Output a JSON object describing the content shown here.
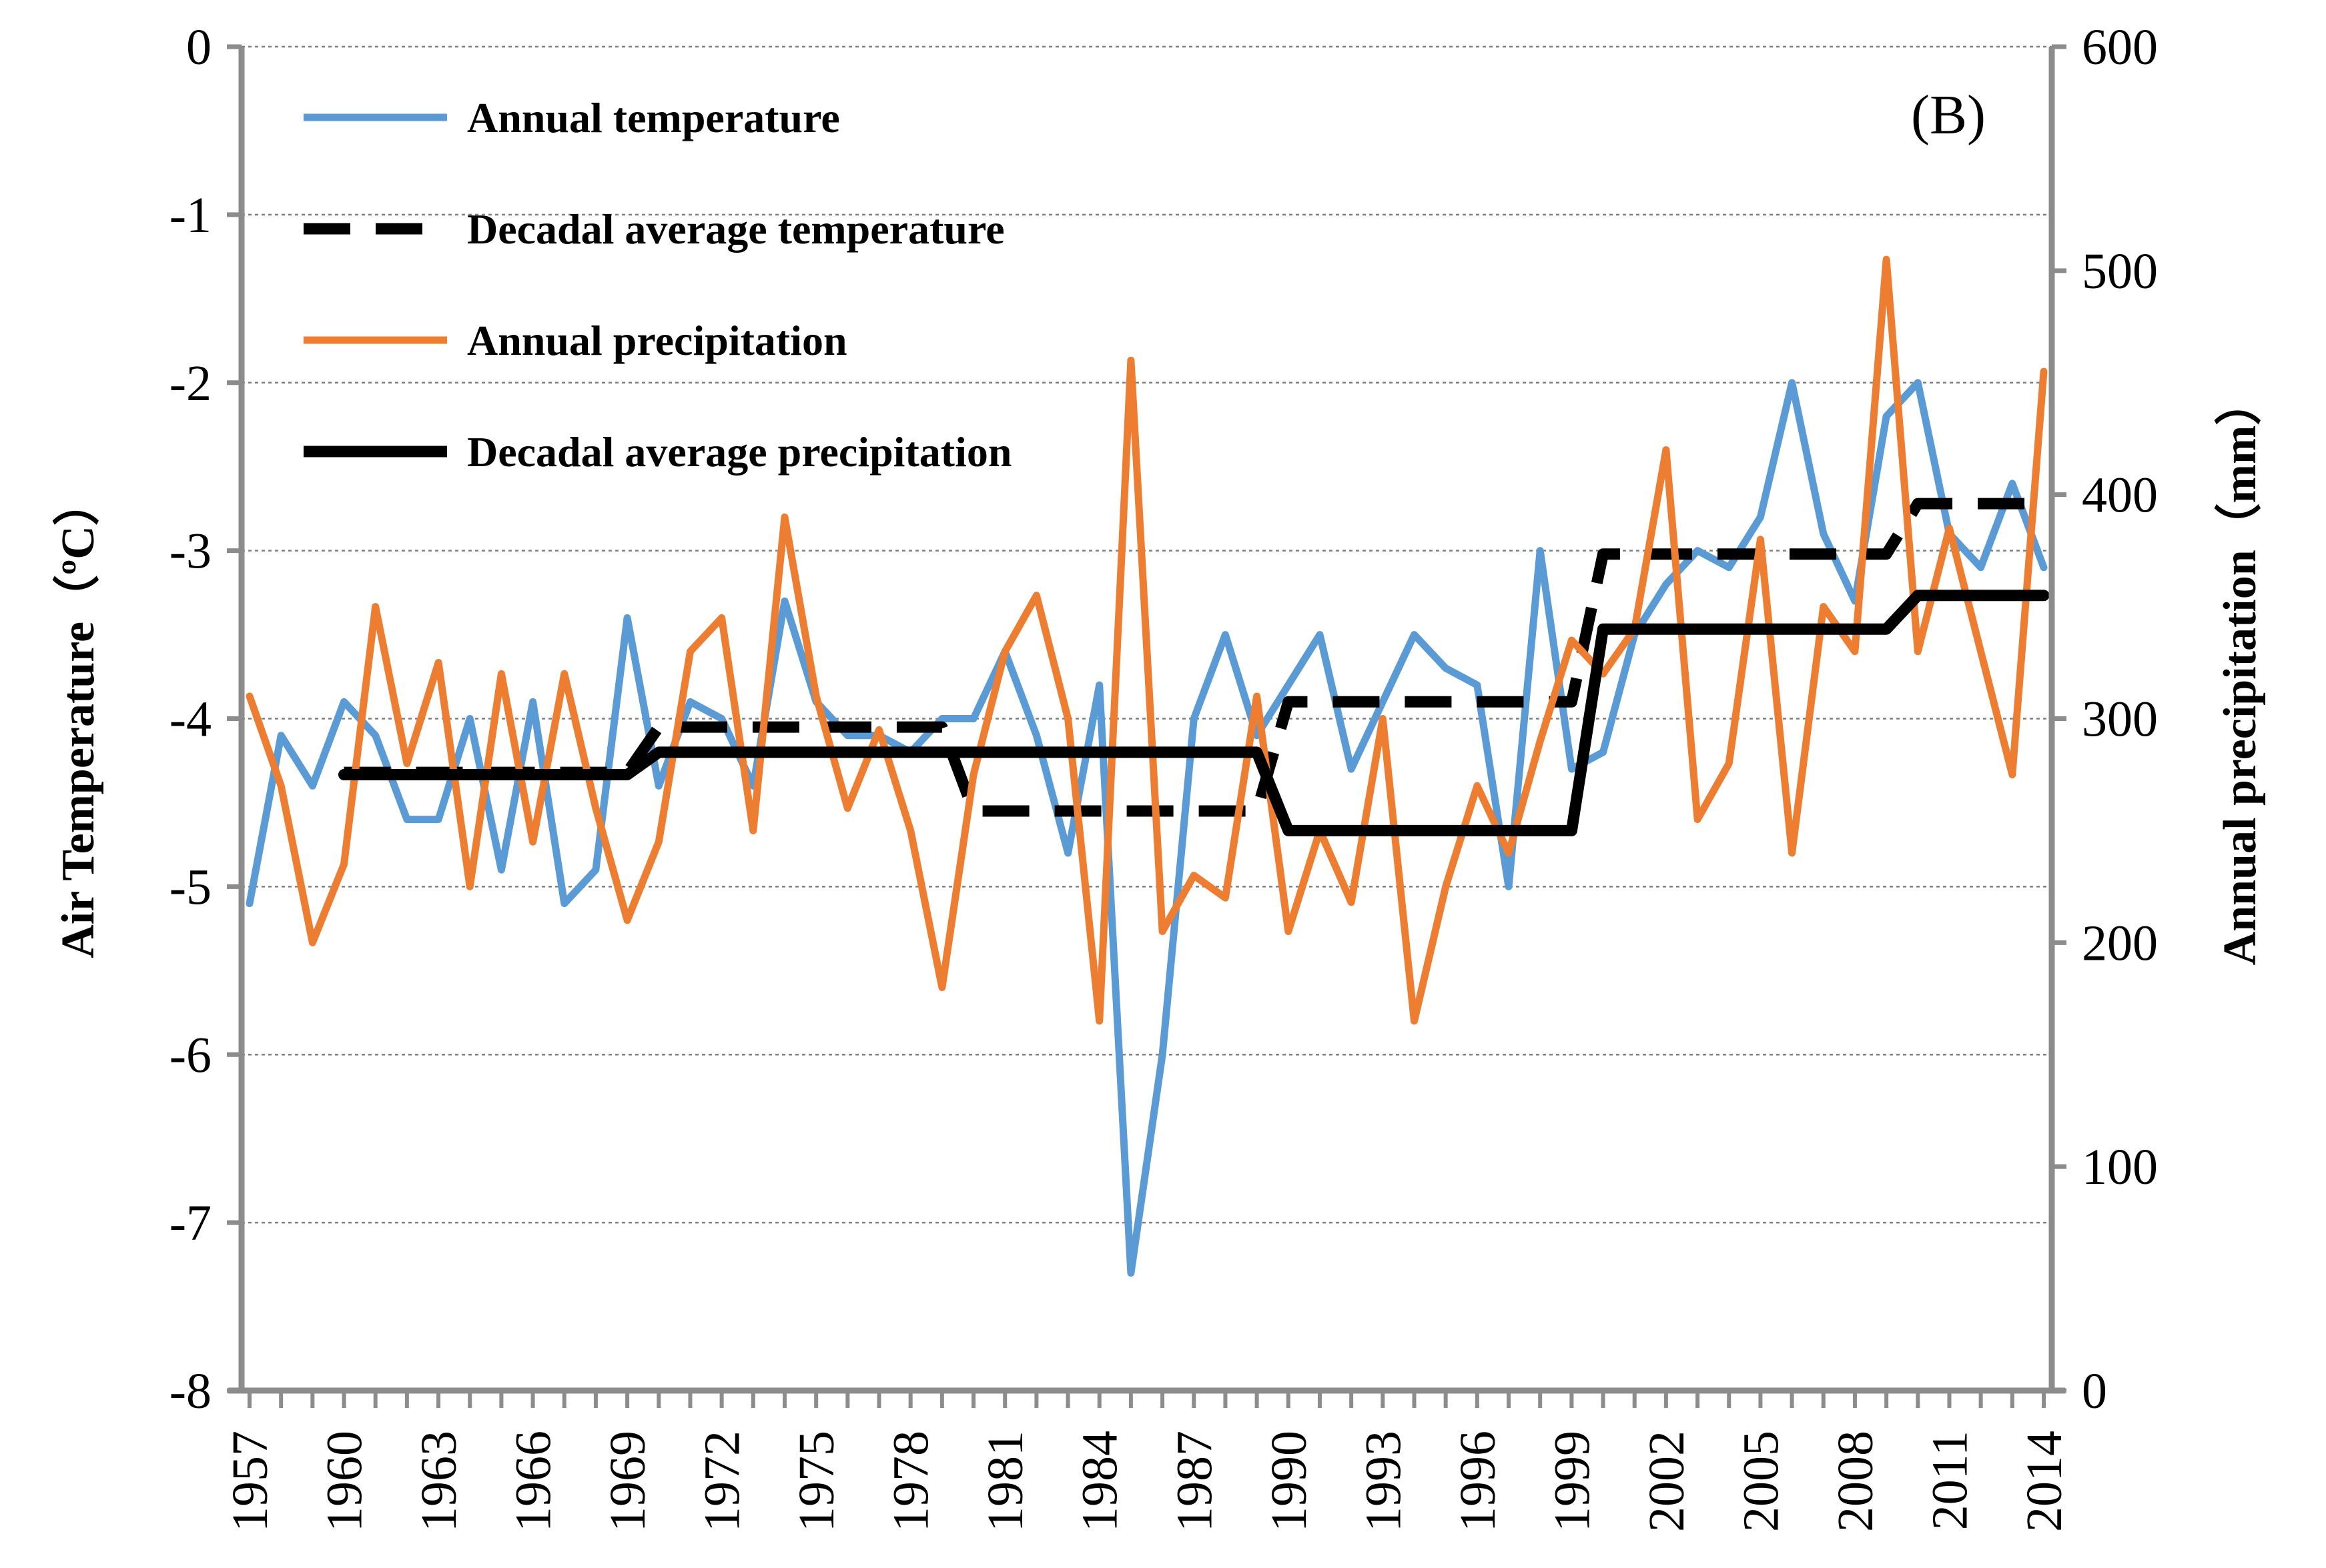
{
  "chart_data": {
    "type": "line",
    "panel_label": "(B)",
    "left_axis": {
      "title": "Air Temperature（ºC）",
      "min": -8,
      "max": 0,
      "ticks": [
        0,
        -1,
        -2,
        -3,
        -4,
        -5,
        -6,
        -7,
        -8
      ],
      "tick_labels": [
        "0",
        "-1",
        "-2",
        "-3",
        "-4",
        "-5",
        "-6",
        "-7",
        "-8"
      ]
    },
    "right_axis": {
      "title": "Annual precipitation（mm）",
      "min": 0,
      "max": 600,
      "ticks": [
        600,
        500,
        400,
        300,
        200,
        100,
        0
      ],
      "tick_labels": [
        "600",
        "500",
        "400",
        "300",
        "200",
        "100",
        "0"
      ]
    },
    "x_axis": {
      "min": 1957,
      "max": 2014,
      "tick_labels": [
        "1957",
        "1960",
        "1963",
        "1966",
        "1969",
        "1972",
        "1975",
        "1978",
        "1981",
        "1984",
        "1987",
        "1990",
        "1993",
        "1996",
        "1999",
        "2002",
        "2005",
        "2008",
        "2011",
        "2014"
      ]
    },
    "grid": "horizontal dashed",
    "legend": {
      "placement": "top-left",
      "entries": [
        {
          "label": "Annual temperature",
          "style": "solid",
          "color": "#5b9bd5"
        },
        {
          "label": "Decadal average temperature",
          "style": "dashed",
          "color": "#000000"
        },
        {
          "label": "Annual precipitation",
          "style": "solid",
          "color": "#ed7d31"
        },
        {
          "label": "Decadal average precipitation",
          "style": "solid",
          "color": "#000000"
        }
      ]
    },
    "series": [
      {
        "name": "Annual temperature",
        "axis": "left",
        "color": "#5b9bd5",
        "style": "solid",
        "x": [
          1957,
          1958,
          1959,
          1960,
          1961,
          1962,
          1963,
          1964,
          1965,
          1966,
          1967,
          1968,
          1969,
          1970,
          1971,
          1972,
          1973,
          1974,
          1975,
          1976,
          1977,
          1978,
          1979,
          1980,
          1981,
          1982,
          1983,
          1984,
          1985,
          1986,
          1987,
          1988,
          1989,
          1990,
          1991,
          1992,
          1993,
          1994,
          1995,
          1996,
          1997,
          1998,
          1999,
          2000,
          2001,
          2002,
          2003,
          2004,
          2005,
          2006,
          2007,
          2008,
          2009,
          2010,
          2011,
          2012,
          2013,
          2014
        ],
        "values": [
          -5.1,
          -4.1,
          -4.4,
          -3.9,
          -4.1,
          -4.6,
          -4.6,
          -4.0,
          -4.9,
          -3.9,
          -5.1,
          -4.9,
          -3.4,
          -4.4,
          -3.9,
          -4.0,
          -4.4,
          -3.3,
          -3.9,
          -4.1,
          -4.1,
          -4.2,
          -4.0,
          -4.0,
          -3.6,
          -4.1,
          -4.8,
          -3.8,
          -7.3,
          -6.0,
          -4.0,
          -3.5,
          -4.1,
          -3.8,
          -3.5,
          -4.3,
          -3.9,
          -3.5,
          -3.7,
          -3.8,
          -5.0,
          -3.0,
          -4.3,
          -4.2,
          -3.5,
          -3.2,
          -3.0,
          -3.1,
          -2.8,
          -2.0,
          -2.9,
          -3.3,
          -2.2,
          -2.0,
          -2.9,
          -3.1,
          -2.6,
          -3.1
        ]
      },
      {
        "name": "Decadal average temperature",
        "axis": "left",
        "color": "#000000",
        "style": "dashed",
        "x": [
          1960,
          1969,
          1970,
          1979,
          1980,
          1989,
          1990,
          1999,
          2000,
          2009,
          2010,
          2014
        ],
        "values": [
          -4.32,
          -4.32,
          -4.05,
          -4.05,
          -4.55,
          -4.55,
          -3.9,
          -3.9,
          -3.02,
          -3.02,
          -2.72,
          -2.72
        ]
      },
      {
        "name": "Annual precipitation",
        "axis": "right",
        "color": "#ed7d31",
        "style": "solid",
        "x": [
          1957,
          1958,
          1959,
          1960,
          1961,
          1962,
          1963,
          1964,
          1965,
          1966,
          1967,
          1968,
          1969,
          1970,
          1971,
          1972,
          1973,
          1974,
          1975,
          1976,
          1977,
          1978,
          1979,
          1980,
          1981,
          1982,
          1983,
          1984,
          1985,
          1986,
          1987,
          1988,
          1989,
          1990,
          1991,
          1992,
          1993,
          1994,
          1995,
          1996,
          1997,
          1998,
          1999,
          2000,
          2001,
          2002,
          2003,
          2004,
          2005,
          2006,
          2007,
          2008,
          2009,
          2010,
          2011,
          2012,
          2013,
          2014
        ],
        "values": [
          310,
          270,
          200,
          235,
          350,
          280,
          325,
          225,
          320,
          245,
          320,
          260,
          210,
          245,
          330,
          345,
          250,
          390,
          310,
          260,
          295,
          250,
          180,
          275,
          330,
          355,
          300,
          165,
          460,
          205,
          230,
          220,
          310,
          205,
          250,
          218,
          300,
          165,
          225,
          270,
          240,
          290,
          335,
          320,
          340,
          420,
          255,
          280,
          380,
          240,
          350,
          330,
          505,
          330,
          385,
          330,
          275,
          455
        ]
      },
      {
        "name": "Decadal average precipitation",
        "axis": "right",
        "color": "#000000",
        "style": "solid",
        "x": [
          1960,
          1969,
          1970,
          1989,
          1990,
          1999,
          2000,
          2009,
          2010,
          2014
        ],
        "values": [
          275,
          275,
          285,
          285,
          250,
          250,
          340,
          340,
          355,
          355
        ]
      }
    ]
  }
}
